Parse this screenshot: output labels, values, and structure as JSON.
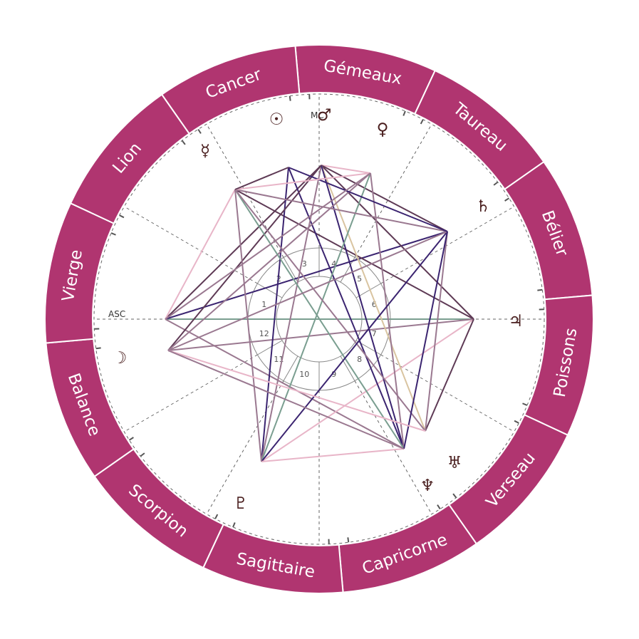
{
  "signs": [
    {
      "name": "Gémeaux"
    },
    {
      "name": "Taureau"
    },
    {
      "name": "Bélier"
    },
    {
      "name": "Poissons"
    },
    {
      "name": "Verseau"
    },
    {
      "name": "Capricorne"
    },
    {
      "name": "Sagittaire"
    },
    {
      "name": "Scorpion"
    },
    {
      "name": "Balance"
    },
    {
      "name": "Vierge"
    },
    {
      "name": "Lion"
    },
    {
      "name": "Cancer"
    }
  ],
  "houses": [
    "1",
    "2",
    "3",
    "4",
    "5",
    "6",
    "7",
    "8",
    "9",
    "10",
    "11",
    "12"
  ],
  "axes": {
    "asc": "ASC",
    "mc": "MC"
  },
  "planets": [
    {
      "name": "sun",
      "glyph": "☉"
    },
    {
      "name": "moon",
      "glyph": "☽"
    },
    {
      "name": "mercury",
      "glyph": "☿"
    },
    {
      "name": "venus",
      "glyph": "♀"
    },
    {
      "name": "mars",
      "glyph": "♂"
    },
    {
      "name": "jupiter",
      "glyph": "♃"
    },
    {
      "name": "saturn",
      "glyph": "♄"
    },
    {
      "name": "uranus",
      "glyph": "♅"
    },
    {
      "name": "neptune",
      "glyph": "♆"
    },
    {
      "name": "pluto",
      "glyph": "♇"
    }
  ],
  "colors": {
    "wheel": "#b03570",
    "aspect_dark_purple": "#3b2470",
    "aspect_plum": "#5e3a55",
    "aspect_mauve": "#9a7890",
    "aspect_pink": "#e8b5c8",
    "aspect_sage": "#7a9e90",
    "aspect_tan": "#d9c4a0"
  }
}
